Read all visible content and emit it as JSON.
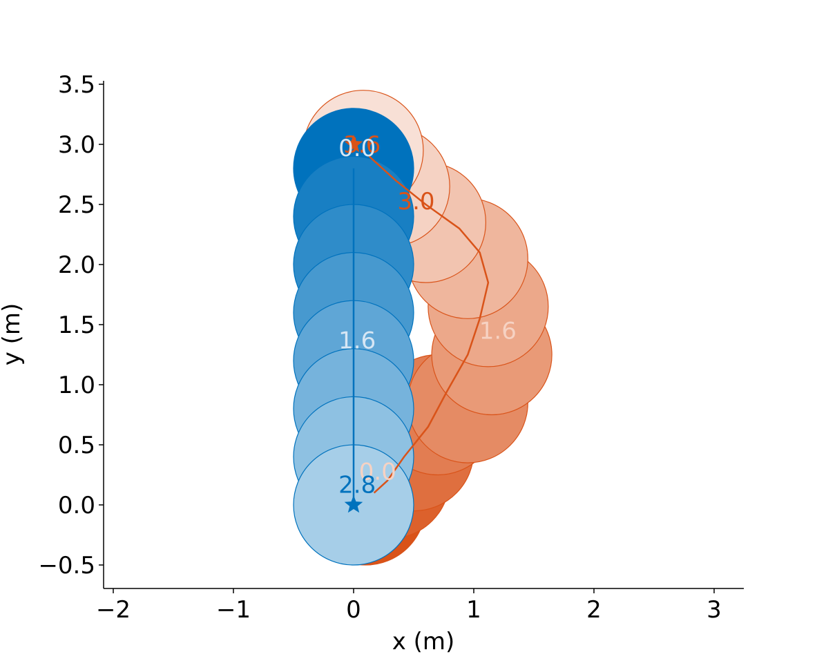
{
  "chart_data": {
    "type": "scatter",
    "title": "",
    "xlabel": "x (m)",
    "ylabel": "y (m)",
    "xlim": [
      -2.08,
      3.25
    ],
    "ylim": [
      -0.7,
      3.53
    ],
    "xticks": [
      {
        "v": -2,
        "label": "−2"
      },
      {
        "v": -1,
        "label": "−1"
      },
      {
        "v": 0,
        "label": "0"
      },
      {
        "v": 1,
        "label": "1"
      },
      {
        "v": 2,
        "label": "2"
      },
      {
        "v": 3,
        "label": "3"
      }
    ],
    "yticks": [
      {
        "v": -0.5,
        "label": "−0.5"
      },
      {
        "v": 0.0,
        "label": "0.0"
      },
      {
        "v": 0.5,
        "label": "0.5"
      },
      {
        "v": 1.0,
        "label": "1.0"
      },
      {
        "v": 1.5,
        "label": "1.5"
      },
      {
        "v": 2.0,
        "label": "2.0"
      },
      {
        "v": 2.5,
        "label": "2.5"
      },
      {
        "v": 3.0,
        "label": "3.0"
      },
      {
        "v": 3.5,
        "label": "3.5"
      }
    ],
    "grid": false,
    "agent_radius": 0.5,
    "series": [
      {
        "color": "#d95319",
        "goal": [
          0.0,
          3.0
        ],
        "path": [
          [
            0.17,
            0.1
          ],
          [
            0.28,
            0.2
          ],
          [
            0.42,
            0.4
          ],
          [
            0.62,
            0.65
          ],
          [
            0.78,
            0.95
          ],
          [
            0.95,
            1.25
          ],
          [
            1.05,
            1.55
          ],
          [
            1.12,
            1.85
          ],
          [
            1.05,
            2.1
          ],
          [
            0.88,
            2.3
          ],
          [
            0.6,
            2.5
          ],
          [
            0.35,
            2.7
          ],
          [
            0.13,
            2.9
          ]
        ],
        "footprints": [
          [
            0.1,
            0.0
          ],
          [
            0.3,
            0.22
          ],
          [
            0.5,
            0.45
          ],
          [
            0.7,
            0.75
          ],
          [
            0.95,
            0.85
          ],
          [
            1.15,
            1.25
          ],
          [
            1.12,
            1.65
          ],
          [
            0.95,
            2.05
          ],
          [
            0.6,
            2.35
          ],
          [
            0.3,
            2.65
          ],
          [
            0.08,
            2.95
          ]
        ],
        "time_labels": [
          {
            "text": "0.0",
            "x": 0.2,
            "y": 0.28,
            "color": "#f6d2c3"
          },
          {
            "text": "1.6",
            "x": 1.2,
            "y": 1.45,
            "color": "#f6d2c3"
          },
          {
            "text": "3.0",
            "x": 0.52,
            "y": 2.53,
            "color": "#d95319"
          },
          {
            "text": "3.6",
            "x": 0.07,
            "y": 3.0,
            "color": "#d95319"
          }
        ]
      },
      {
        "color": "#0072bd",
        "goal": [
          0.0,
          0.0
        ],
        "path": [
          [
            0.0,
            2.8
          ],
          [
            0.0,
            0.0
          ]
        ],
        "footprints": [
          [
            0.0,
            2.8
          ],
          [
            0.0,
            2.4
          ],
          [
            0.0,
            2.0
          ],
          [
            0.0,
            1.6
          ],
          [
            0.0,
            1.2
          ],
          [
            0.0,
            0.8
          ],
          [
            0.0,
            0.4
          ],
          [
            0.0,
            0.0
          ]
        ],
        "time_labels": [
          {
            "text": "0.0",
            "x": 0.03,
            "y": 2.97,
            "color": "#d6e6f4"
          },
          {
            "text": "1.6",
            "x": 0.03,
            "y": 1.37,
            "color": "#d6e6f4"
          },
          {
            "text": "2.8",
            "x": 0.03,
            "y": 0.17,
            "color": "#0072bd"
          }
        ]
      }
    ]
  }
}
